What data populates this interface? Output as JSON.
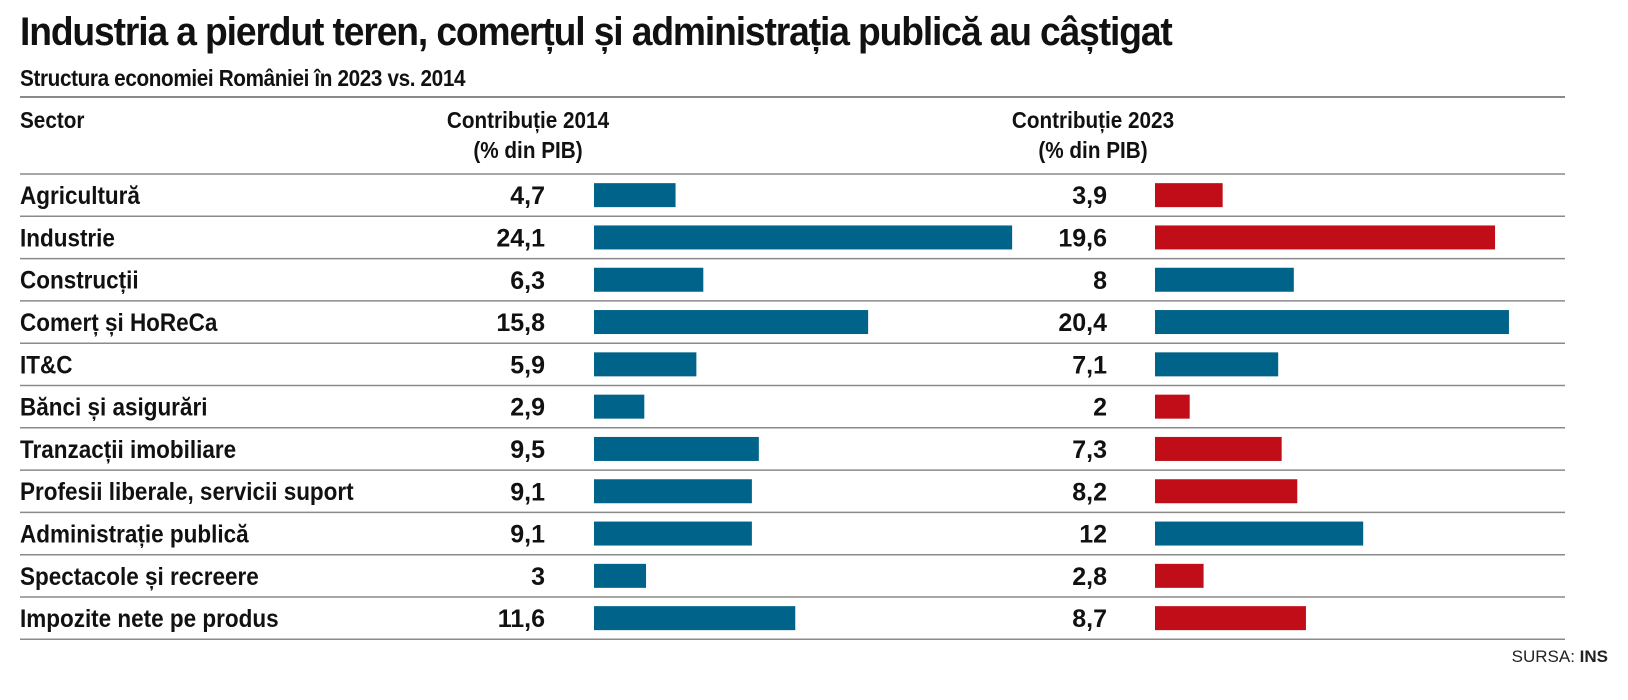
{
  "chart_data": {
    "type": "bar",
    "title": "Industria a pierdut teren, comerțul și administrația publică au câștigat",
    "subtitle": "Structura economiei României în 2023 vs. 2014",
    "column_headers": {
      "sector": "Sector",
      "y2014": [
        "Contribuție 2014",
        "(% din PIB)"
      ],
      "y2023": [
        "Contribuție 2023",
        "(% din PIB)"
      ]
    },
    "categories": [
      "Agricultură",
      "Industrie",
      "Construcții",
      "Comerț și HoReCa",
      "IT&C",
      "Bănci și asigurări",
      "Tranzacții imobiliare",
      "Profesii liberale, servicii suport",
      "Administrație publică",
      "Spectacole și recreere",
      "Impozite nete pe produs"
    ],
    "series": [
      {
        "name": "Contribuție 2014",
        "values": [
          4.7,
          24.1,
          6.3,
          15.8,
          5.9,
          2.9,
          9.5,
          9.1,
          9.1,
          3,
          11.6
        ],
        "labels": [
          "4,7",
          "24,1",
          "6,3",
          "15,8",
          "5,9",
          "2,9",
          "9,5",
          "9,1",
          "9,1",
          "3",
          "11,6"
        ]
      },
      {
        "name": "Contribuție 2023",
        "values": [
          3.9,
          19.6,
          8,
          20.4,
          7.1,
          2,
          7.3,
          8.2,
          12,
          2.8,
          8.7
        ],
        "labels": [
          "3,9",
          "19,6",
          "8",
          "20,4",
          "7,1",
          "2",
          "7,3",
          "8,2",
          "12",
          "2,8",
          "8,7"
        ]
      }
    ],
    "colors": {
      "bar_2014": "#006389",
      "increase": "#006389",
      "decrease": "#c10d17"
    },
    "source_label": "SURSA:",
    "source_value": "INS"
  }
}
